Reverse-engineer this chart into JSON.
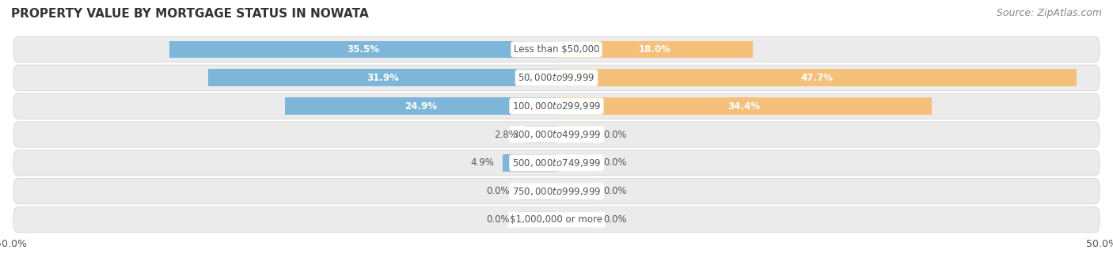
{
  "title": "PROPERTY VALUE BY MORTGAGE STATUS IN NOWATA",
  "source": "Source: ZipAtlas.com",
  "categories": [
    "Less than $50,000",
    "$50,000 to $99,999",
    "$100,000 to $299,999",
    "$300,000 to $499,999",
    "$500,000 to $749,999",
    "$750,000 to $999,999",
    "$1,000,000 or more"
  ],
  "without_mortgage": [
    35.5,
    31.9,
    24.9,
    2.8,
    4.9,
    0.0,
    0.0
  ],
  "with_mortgage": [
    18.0,
    47.7,
    34.4,
    0.0,
    0.0,
    0.0,
    0.0
  ],
  "without_mortgage_color": "#7EB6D9",
  "with_mortgage_color": "#F5C07A",
  "row_bg_color": "#EBEBEB",
  "axis_limit": 50.0,
  "label_color_light": "#FFFFFF",
  "label_color_dark": "#555555",
  "title_color": "#333333",
  "title_fontsize": 11,
  "source_fontsize": 9,
  "category_fontsize": 8.5,
  "value_fontsize": 8.5,
  "stub_size": 3.5,
  "inside_threshold": 8
}
